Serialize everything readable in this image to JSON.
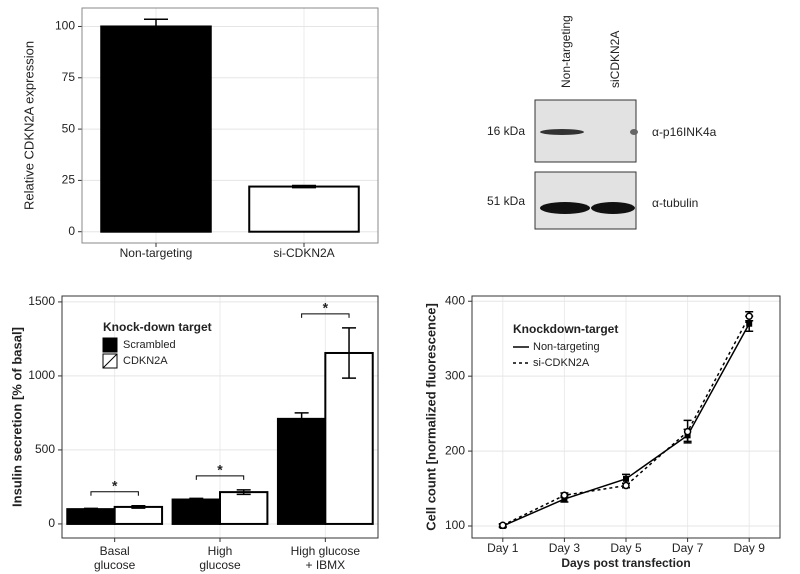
{
  "chart_data": [
    {
      "type": "bar",
      "ylabel": "Relative CDKN2A expression",
      "categories": [
        "Non-targeting",
        "si-CDKN2A"
      ],
      "values": [
        100,
        22
      ],
      "errors": [
        3.5,
        0.5
      ],
      "colors": [
        "#000000",
        "#ffffff"
      ],
      "ylim": [
        -5.5,
        109
      ],
      "yticks": [
        0,
        25,
        50,
        75,
        100
      ],
      "grid": true
    },
    {
      "type": "bar",
      "ylabel": "Insulin secretion [% of basal]",
      "categories": [
        [
          "Basal",
          "glucose"
        ],
        [
          "High",
          "glucose"
        ],
        [
          "High glucose",
          "+ IBMX"
        ]
      ],
      "legend_title": "Knock-down target",
      "series": [
        {
          "name": "Scrambled",
          "color": "#000000",
          "values": [
            100,
            165,
            710
          ],
          "errors": [
            5,
            8,
            40
          ]
        },
        {
          "name": "CDKN2A",
          "color": "#ffffff",
          "values": [
            115,
            215,
            1155
          ],
          "errors": [
            8,
            15,
            170
          ]
        }
      ],
      "significance": [
        "*",
        "*",
        "*"
      ],
      "ylim": [
        -95,
        1540
      ],
      "yticks": [
        0,
        500,
        1000,
        1500
      ],
      "grid": true
    },
    {
      "type": "line",
      "ylabel": "Cell count [normalized fluorescence]",
      "xlabel": "Days post transfection",
      "categories": [
        "Day 1",
        "Day 3",
        "Day 5",
        "Day 7",
        "Day 9"
      ],
      "legend_title": "Knockdown-target",
      "series": [
        {
          "name": "Non-targeting",
          "color": "#000000",
          "linestyle": "solid",
          "values": [
            100,
            136,
            163,
            221,
            370
          ],
          "errors": [
            2,
            4,
            6,
            8,
            10
          ]
        },
        {
          "name": "si-CDKN2A",
          "color": "#000000",
          "linestyle": "dashed",
          "values": [
            101,
            141,
            154,
            226,
            380
          ],
          "errors": [
            2,
            3,
            3,
            15,
            6
          ]
        }
      ],
      "ylim": [
        84,
        407
      ],
      "yticks": [
        100,
        200,
        300,
        400
      ],
      "grid": true
    }
  ],
  "blot": {
    "lanes": [
      "Non-targeting",
      "siCDKN2A"
    ],
    "sizes": [
      "16 kDa",
      "51 kDa"
    ],
    "antibodies": [
      "α-p16INK4a",
      "α-tubulin"
    ]
  }
}
